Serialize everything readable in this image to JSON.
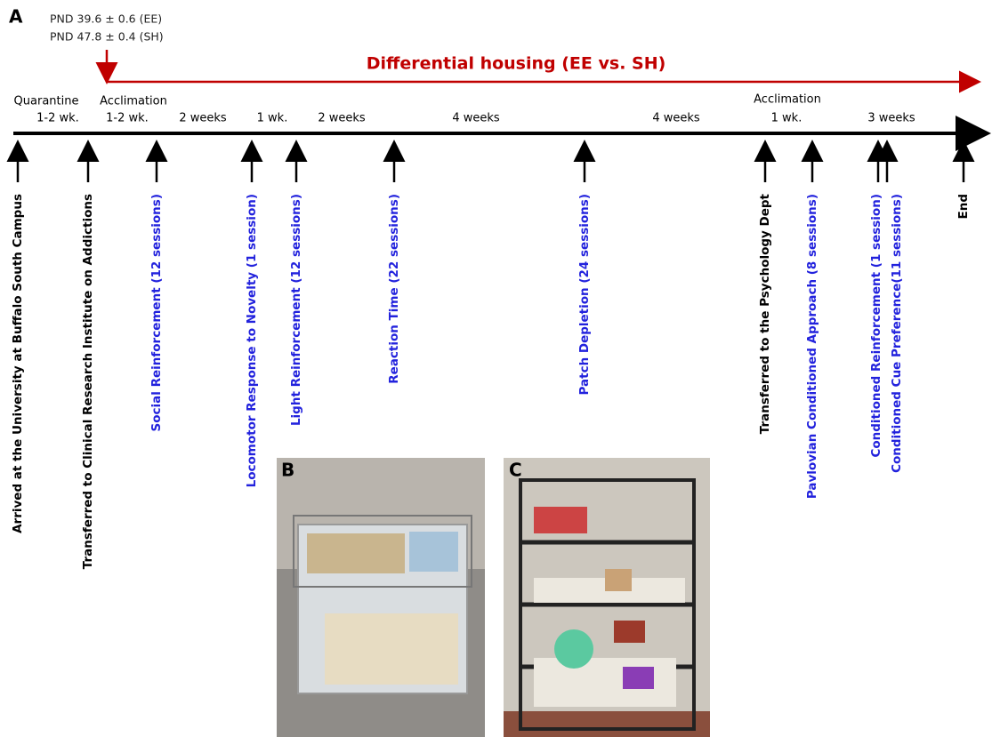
{
  "panel_a": {
    "label": "A",
    "pnd": [
      "PND 39.6 ± 0.6 (EE)",
      "PND 47.8 ± 0.4 (SH)"
    ],
    "housing": "Differential housing (EE vs. SH)",
    "phases": [
      "Quarantine",
      "Acclimation",
      "Acclimation"
    ],
    "durations": [
      "1-2 wk.",
      "1-2 wk.",
      "2 weeks",
      "1 wk.",
      "2 weeks",
      "4 weeks",
      "4 weeks",
      "1 wk.",
      "3 weeks"
    ],
    "events": [
      {
        "label": "Arrived at the University at Buffalo South Campus",
        "color": "#000000"
      },
      {
        "label": "Transferred to Clinical Research Institute on Addictions",
        "color": "#000000"
      },
      {
        "label": "Social Reinforcement (12 sessions)",
        "color": "#2222dd"
      },
      {
        "label": "Locomotor Response to Novelty (1 session)",
        "color": "#2222dd"
      },
      {
        "label": "Light Reinforcement (12 sessions)",
        "color": "#2222dd"
      },
      {
        "label": "Reaction Time (22 sessions)",
        "color": "#2222dd"
      },
      {
        "label": "Patch Depletion (24 sessions)",
        "color": "#2222dd"
      },
      {
        "label": "Transferred to the Psychology Dept",
        "color": "#000000"
      },
      {
        "label": "Pavlovian Conditioned Approach (8 sessions)",
        "color": "#2222dd"
      },
      {
        "label": "Conditioned Reinforcement (1 session)",
        "color": "#2222dd"
      },
      {
        "label": "Conditioned Cue Preference(11 sessions)",
        "color": "#2222dd"
      },
      {
        "label": "End",
        "color": "#000000"
      }
    ]
  },
  "panel_b": {
    "label": "B"
  },
  "panel_c": {
    "label": "C"
  }
}
